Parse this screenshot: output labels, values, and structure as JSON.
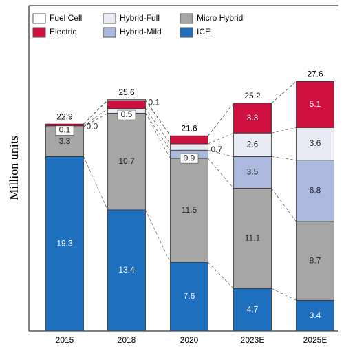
{
  "chart_data": {
    "type": "stacked_bar",
    "ylabel": "Million units",
    "categories": [
      "2015",
      "2018",
      "2020",
      "2023E",
      "2025E"
    ],
    "ylim": [
      0,
      36
    ],
    "series": [
      {
        "name": "ICE",
        "color": "#1f6fbf",
        "values": [
          19.3,
          13.4,
          7.6,
          4.7,
          3.4
        ],
        "value_labels": [
          "19.3",
          "13.4",
          "7.6",
          "4.7",
          "3.4"
        ]
      },
      {
        "name": "Micro Hybrid",
        "color": "#a6a6a6",
        "values": [
          3.3,
          10.7,
          11.5,
          11.1,
          8.7
        ],
        "value_labels": [
          "3.3",
          "10.7",
          "11.5",
          "11.1",
          "8.7"
        ]
      },
      {
        "name": "Hybrid-Mild",
        "color": "#aab9dd",
        "values": [
          0,
          0,
          0.9,
          3.5,
          6.8
        ],
        "value_labels": [
          null,
          null,
          "0.9",
          "3.5",
          "6.8"
        ]
      },
      {
        "name": "Hybrid-Full",
        "color": "#e8ebf4",
        "values": [
          0.1,
          0.5,
          0.7,
          2.6,
          3.6
        ],
        "value_labels": [
          "0.1",
          "0.5",
          "0.7",
          "2.6",
          "3.6"
        ]
      },
      {
        "name": "Electric",
        "color": "#d0103f",
        "values": [
          0.2,
          0.9,
          0.9,
          3.3,
          5.1
        ],
        "value_labels": [
          null,
          null,
          null,
          "3.3",
          "5.1"
        ]
      },
      {
        "name": "Fuel Cell",
        "color": "#ffffff",
        "values": [
          0,
          0.1,
          0,
          0,
          0
        ],
        "value_labels": [
          "0.0",
          "0.1",
          null,
          null,
          null
        ]
      }
    ],
    "totals": [
      22.9,
      25.6,
      21.6,
      25.2,
      27.6
    ]
  }
}
